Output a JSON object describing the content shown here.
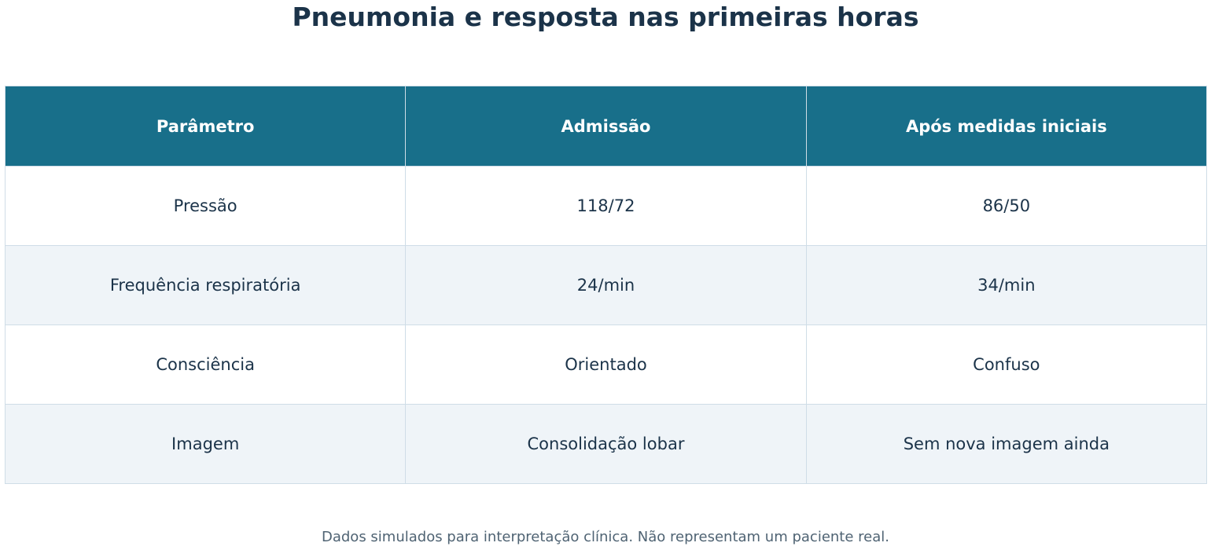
{
  "title": "Pneumonia e resposta nas primeiras horas",
  "footnote": "Dados simulados para interpretação clínica. Não representam um paciente real.",
  "colors": {
    "header_bg": "#186f8a",
    "header_text": "#ffffff",
    "text": "#1b3349",
    "row_alt_bg": "#eff4f8",
    "border": "#cfdde7",
    "footnote": "#4f6373"
  },
  "chart_data": {
    "type": "table",
    "title": "Pneumonia e resposta nas primeiras horas",
    "columns": [
      "Parâmetro",
      "Admissão",
      "Após medidas iniciais"
    ],
    "rows": [
      [
        "Pressão",
        "118/72",
        "86/50"
      ],
      [
        "Frequência respiratória",
        "24/min",
        "34/min"
      ],
      [
        "Consciência",
        "Orientado",
        "Confuso"
      ],
      [
        "Imagem",
        "Consolidação lobar",
        "Sem nova imagem ainda"
      ]
    ]
  }
}
